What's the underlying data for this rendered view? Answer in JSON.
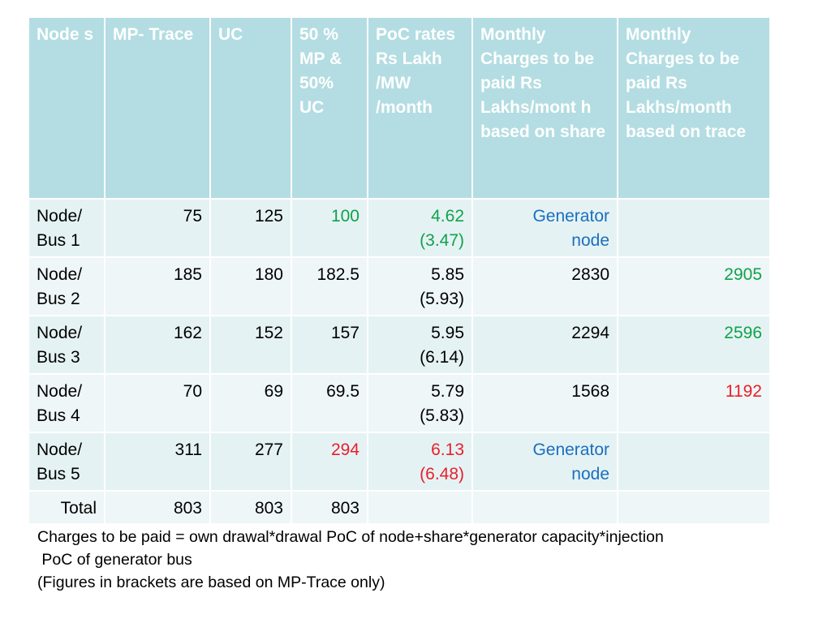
{
  "table": {
    "headers": [
      "Node s",
      "MP- Trace",
      "UC",
      "50 % MP & 50% UC",
      "PoC rates Rs Lakh /MW /month",
      "Monthly Charges to be paid Rs Lakhs/mont h based on share",
      "Monthly Charges to be paid Rs Lakhs/month based on trace"
    ],
    "rows": [
      {
        "node_line1": "Node/",
        "node_line2": "Bus 1",
        "mp_trace": "75",
        "uc": "125",
        "avg": "100",
        "poc_line1": "4.62",
        "poc_line2": "(3.47)",
        "share_line1": "Generator",
        "share_line2": "node",
        "trace": ""
      },
      {
        "node_line1": "Node/",
        "node_line2": "Bus 2",
        "mp_trace": "185",
        "uc": "180",
        "avg": "182.5",
        "poc_line1": "5.85",
        "poc_line2": "(5.93)",
        "share_line1": "2830",
        "share_line2": "",
        "trace": "2905"
      },
      {
        "node_line1": "Node/",
        "node_line2": "Bus 3",
        "mp_trace": "162",
        "uc": "152",
        "avg": "157",
        "poc_line1": "5.95",
        "poc_line2": "(6.14)",
        "share_line1": "2294",
        "share_line2": "",
        "trace": "2596"
      },
      {
        "node_line1": "Node/",
        "node_line2": "Bus 4",
        "mp_trace": "70",
        "uc": "69",
        "avg": "69.5",
        "poc_line1": "5.79",
        "poc_line2": "(5.83)",
        "share_line1": "1568",
        "share_line2": "",
        "trace": "1192"
      },
      {
        "node_line1": "Node/",
        "node_line2": "Bus 5",
        "mp_trace": "311",
        "uc": "277",
        "avg": "294",
        "poc_line1": "6.13",
        "poc_line2": "(6.48)",
        "share_line1": "Generator",
        "share_line2": "node",
        "trace": ""
      }
    ],
    "total": {
      "label": "Total",
      "mp_trace": "803",
      "uc": "803",
      "avg": "803"
    }
  },
  "notes": {
    "line1": "Charges to be paid = own drawal*drawal PoC of node+share*generator capacity*injection",
    "line2": " PoC of generator bus",
    "line3": "(Figures in brackets are based on MP-Trace only)"
  },
  "colors": {
    "header_bg": "#b3dde2",
    "green": "#0fa24a",
    "red": "#e8202a",
    "blue": "#1a6fbd"
  }
}
